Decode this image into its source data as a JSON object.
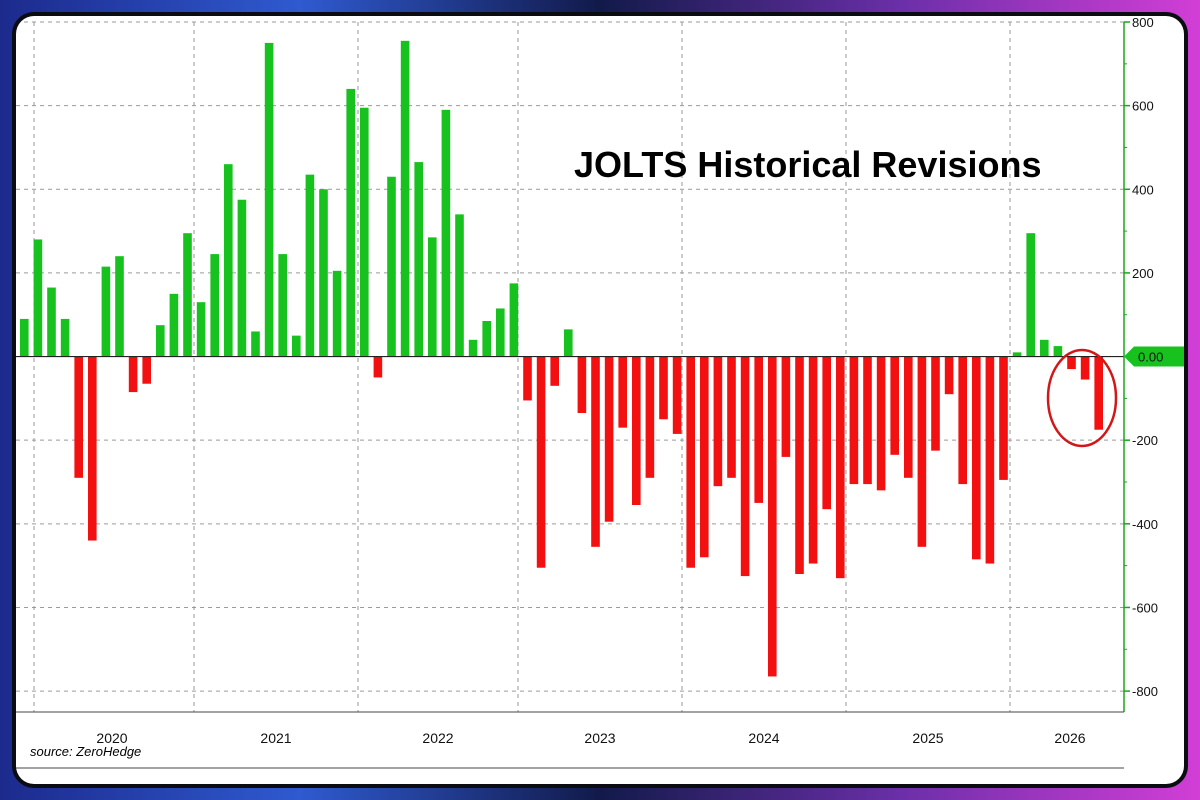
{
  "colors": {
    "positive": "#17c21f",
    "negative": "#f21010",
    "axis": "#1aa51a",
    "highlight": "#d11717"
  },
  "annotation": {
    "type": "circle",
    "color": "#d11717",
    "target": "last three bars"
  },
  "chart_data": {
    "type": "bar",
    "title": "JOLTS Historical Revisions",
    "source": "source: ZeroHedge",
    "ylim": [
      -850,
      800
    ],
    "y_ticks": [
      "800",
      "600",
      "400",
      "200",
      "0.00",
      "-200",
      "-400",
      "-600",
      "-800"
    ],
    "y_axis_side": "right",
    "last_value_label": "0.00",
    "x_labels": [
      "2020",
      "2021",
      "2022",
      "2023",
      "2024",
      "2025",
      "2026"
    ],
    "grid": true,
    "series": [
      {
        "values": [
          90,
          280,
          165,
          90,
          -290,
          -440,
          215,
          240,
          -85,
          -65,
          75,
          150,
          295,
          130,
          245,
          460,
          375,
          60,
          750,
          245,
          50,
          435,
          400,
          205,
          640,
          595,
          -50,
          430,
          755,
          465,
          285,
          590,
          340,
          40,
          85,
          115,
          175,
          -105,
          -505,
          -70,
          65,
          -135,
          -455,
          -395,
          -170,
          -355,
          -290,
          -150,
          -185,
          -505,
          -480,
          -310,
          -290,
          -525,
          -350,
          -765,
          -240,
          -520,
          -495,
          -365,
          -530,
          -305,
          -305,
          -320,
          -235,
          -290,
          -455,
          -225,
          -90,
          -305,
          -485,
          -495,
          -295,
          10,
          295,
          40,
          25,
          -30,
          -55,
          -175
        ]
      }
    ]
  }
}
